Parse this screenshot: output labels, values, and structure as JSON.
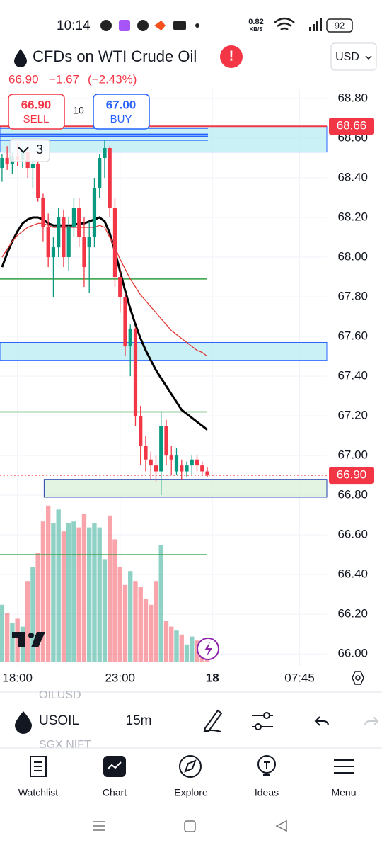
{
  "status_bar": {
    "time": "10:14",
    "net_speed": "0.82",
    "net_unit": "KB/S",
    "battery": "92"
  },
  "header": {
    "title": "CFDs on WTI Crude Oil",
    "currency": "USD",
    "price": "66.90",
    "change": "−1.67",
    "change_pct": "(−2.43%)"
  },
  "trade": {
    "sell_price": "66.90",
    "sell": "SELL",
    "spread": "10",
    "buy_price": "67.00",
    "buy": "BUY"
  },
  "indicators_count": "3",
  "chart_data": {
    "type": "candlestick",
    "up_color": "#089981",
    "down_color": "#f23645",
    "ylim": [
      65.94,
      68.85
    ],
    "yticks": [
      {
        "value": 68.8,
        "label": "68.80"
      },
      {
        "value": 68.6,
        "label": "68.60"
      },
      {
        "value": 68.4,
        "label": "68.40"
      },
      {
        "value": 68.2,
        "label": "68.20"
      },
      {
        "value": 68,
        "label": "68.00"
      },
      {
        "value": 67.8,
        "label": "67.80"
      },
      {
        "value": 67.6,
        "label": "67.60"
      },
      {
        "value": 67.4,
        "label": "67.40"
      },
      {
        "value": 67.2,
        "label": "67.20"
      },
      {
        "value": 67,
        "label": "67.00"
      },
      {
        "value": 66.8,
        "label": "66.80"
      },
      {
        "value": 66.6,
        "label": "66.60"
      },
      {
        "value": 66.4,
        "label": "66.40"
      },
      {
        "value": 66.2,
        "label": "66.20"
      },
      {
        "value": 66,
        "label": "66.00"
      }
    ],
    "xlim": [
      -0.4,
      63.3
    ],
    "xticks": [
      {
        "value": 3,
        "label": "18:00"
      },
      {
        "value": 23,
        "label": "23:00"
      },
      {
        "value": 41,
        "label": "18"
      },
      {
        "value": 58,
        "label": "07:45"
      }
    ],
    "candles": [
      {
        "open": 68.45,
        "high": 68.52,
        "low": 68.38,
        "close": 68.5
      },
      {
        "open": 68.5,
        "high": 68.56,
        "low": 68.44,
        "close": 68.47
      },
      {
        "open": 68.47,
        "high": 68.53,
        "low": 68.42,
        "close": 68.51
      },
      {
        "open": 68.51,
        "high": 68.58,
        "low": 68.46,
        "close": 68.49
      },
      {
        "open": 68.49,
        "high": 68.55,
        "low": 68.45,
        "close": 68.53
      },
      {
        "open": 68.53,
        "high": 68.57,
        "low": 68.4,
        "close": 68.45
      },
      {
        "open": 68.45,
        "high": 68.5,
        "low": 68.35,
        "close": 68.47
      },
      {
        "open": 68.47,
        "high": 68.49,
        "low": 68.28,
        "close": 68.3
      },
      {
        "open": 68.3,
        "high": 68.32,
        "low": 68.08,
        "close": 68.15
      },
      {
        "open": 68.15,
        "high": 68.22,
        "low": 67.95,
        "close": 68.0
      },
      {
        "open": 68.0,
        "high": 68.1,
        "low": 67.8,
        "close": 68.05
      },
      {
        "open": 68.05,
        "high": 68.25,
        "low": 68.0,
        "close": 68.2
      },
      {
        "open": 68.2,
        "high": 68.24,
        "low": 67.95,
        "close": 68.0
      },
      {
        "open": 68.0,
        "high": 68.2,
        "low": 67.93,
        "close": 68.15
      },
      {
        "open": 68.15,
        "high": 68.3,
        "low": 68.1,
        "close": 68.25
      },
      {
        "open": 68.25,
        "high": 68.3,
        "low": 68.05,
        "close": 68.1
      },
      {
        "open": 68.1,
        "high": 68.2,
        "low": 67.85,
        "close": 67.95
      },
      {
        "open": 68.05,
        "high": 68.18,
        "low": 67.82,
        "close": 68.1
      },
      {
        "open": 68.1,
        "high": 68.4,
        "low": 68.05,
        "close": 68.35
      },
      {
        "open": 68.35,
        "high": 68.52,
        "low": 68.3,
        "close": 68.5
      },
      {
        "open": 68.5,
        "high": 68.59,
        "low": 68.4,
        "close": 68.55
      },
      {
        "open": 68.55,
        "high": 68.56,
        "low": 68.2,
        "close": 68.25
      },
      {
        "open": 68.25,
        "high": 68.3,
        "low": 67.85,
        "close": 67.9
      },
      {
        "open": 67.9,
        "high": 67.95,
        "low": 67.72,
        "close": 67.8
      },
      {
        "open": 67.8,
        "high": 67.82,
        "low": 67.5,
        "close": 67.55
      },
      {
        "open": 67.55,
        "high": 67.66,
        "low": 67.4,
        "close": 67.64
      },
      {
        "open": 67.64,
        "high": 67.65,
        "low": 67.15,
        "close": 67.2
      },
      {
        "open": 67.2,
        "high": 67.25,
        "low": 66.95,
        "close": 67.05
      },
      {
        "open": 67.05,
        "high": 67.1,
        "low": 66.92,
        "close": 66.98
      },
      {
        "open": 66.98,
        "high": 67.02,
        "low": 66.88,
        "close": 66.95
      },
      {
        "open": 66.95,
        "high": 67.0,
        "low": 66.87,
        "close": 66.92
      },
      {
        "open": 66.92,
        "high": 67.22,
        "low": 66.8,
        "close": 67.15
      },
      {
        "open": 67.15,
        "high": 67.18,
        "low": 66.95,
        "close": 67.0
      },
      {
        "open": 67.0,
        "high": 67.05,
        "low": 66.9,
        "close": 66.98
      },
      {
        "open": 66.92,
        "high": 67.04,
        "low": 66.9,
        "close": 67.0
      },
      {
        "open": 66.95,
        "high": 66.98,
        "low": 66.88,
        "close": 66.92
      },
      {
        "open": 66.92,
        "high": 66.97,
        "low": 66.89,
        "close": 66.95
      },
      {
        "open": 66.95,
        "high": 67.0,
        "low": 66.9,
        "close": 66.98
      },
      {
        "open": 66.98,
        "high": 67.0,
        "low": 66.92,
        "close": 66.95
      },
      {
        "open": 66.95,
        "high": 66.97,
        "low": 66.9,
        "close": 66.92
      },
      {
        "open": 66.92,
        "high": 66.94,
        "low": 66.89,
        "close": 66.9
      }
    ],
    "volume_lim": [
      0,
      100
    ],
    "volumes": [
      29,
      25,
      20,
      22,
      18,
      41,
      48,
      55,
      71,
      79,
      70,
      77,
      66,
      70,
      71,
      68,
      75,
      68,
      70,
      68,
      52,
      74,
      62,
      48,
      39,
      46,
      41,
      38,
      32,
      29,
      41,
      59,
      21,
      18,
      16,
      14,
      9,
      13,
      11,
      7,
      4
    ],
    "lines": [
      {
        "color": "#000000",
        "values": [
          67.95,
          68.02,
          68.08,
          68.13,
          68.17,
          68.19,
          68.2,
          68.2,
          68.19,
          68.17,
          68.16,
          68.16,
          68.16,
          68.16,
          68.16,
          68.17,
          68.17,
          68.18,
          68.19,
          68.2,
          68.18,
          68.12,
          68.03,
          67.93,
          67.83,
          67.74,
          67.66,
          67.59,
          67.53,
          67.48,
          67.43,
          67.39,
          67.35,
          67.31,
          67.27,
          67.23,
          67.21,
          67.19,
          67.17,
          67.15,
          67.13
        ]
      },
      {
        "color": "#e53935",
        "values": [
          68.0,
          68.04,
          68.08,
          68.11,
          68.13,
          68.15,
          68.16,
          68.17,
          68.17,
          68.16,
          68.15,
          68.15,
          68.15,
          68.15,
          68.15,
          68.15,
          68.15,
          68.15,
          68.15,
          68.16,
          68.15,
          68.1,
          68.05,
          67.99,
          67.94,
          67.89,
          67.85,
          67.81,
          67.78,
          67.75,
          67.72,
          67.69,
          67.66,
          67.63,
          67.61,
          67.59,
          67.57,
          67.55,
          67.53,
          67.52,
          67.5
        ]
      }
    ],
    "zones": [
      {
        "from": 68.53,
        "to": 68.66,
        "color": "#b2ebf2",
        "border": "#2962ff"
      },
      {
        "from": 67.48,
        "to": 67.57,
        "color": "#b2ebf2",
        "border": "#2962ff"
      },
      {
        "from": 66.79,
        "to": 66.88,
        "color": "#d7efd7",
        "border": "#1e3fb0"
      }
    ],
    "levels": [
      {
        "value": 68.65,
        "color": "#2962ff"
      },
      {
        "value": 68.62,
        "color": "#2962ff"
      },
      {
        "value": 68.61,
        "color": "#2962ff"
      },
      {
        "value": 68.59,
        "color": "#2962ff"
      },
      {
        "value": 67.89,
        "color": "#2e9e3e"
      },
      {
        "value": 67.22,
        "color": "#2e9e3e"
      },
      {
        "value": 66.5,
        "color": "#2e9e3e"
      }
    ],
    "alert_price": 68.66,
    "last_price": {
      "value": 66.9,
      "label": "66.90"
    }
  },
  "toolbar": {
    "symbol": "USOIL",
    "interval": "15m",
    "faded_above": "OILUSD",
    "faded_below": "SGX NIFT"
  },
  "nav": [
    "Watchlist",
    "Chart",
    "Explore",
    "Ideas",
    "Menu"
  ]
}
